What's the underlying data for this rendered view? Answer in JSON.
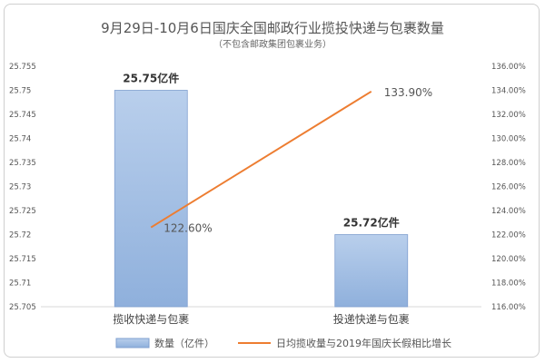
{
  "chart_data": {
    "type": "bar+line",
    "title": "9月29日-10月6日国庆全国邮政行业揽投快递与包裹数量",
    "subtitle": "（不包含邮政集团包裹业务）",
    "categories": [
      "揽收快递与包裹",
      "投递快递与包裹"
    ],
    "series": [
      {
        "name": "数量（亿件）",
        "type": "bar",
        "axis": "left",
        "color": "#a9c3e6",
        "values": [
          25.75,
          25.72
        ],
        "labels": [
          "25.75亿件",
          "25.72亿件"
        ]
      },
      {
        "name": "日均揽收量与2019年国庆长假相比增长",
        "type": "line",
        "axis": "right",
        "color": "#ed7d31",
        "values": [
          122.6,
          133.9
        ],
        "labels": [
          "122.60%",
          "133.90%"
        ]
      }
    ],
    "left_axis": {
      "ylim": [
        25.705,
        25.755
      ],
      "ticks": [
        "25.705",
        "25.71",
        "25.715",
        "25.72",
        "25.725",
        "25.73",
        "25.735",
        "25.74",
        "25.745",
        "25.75",
        "25.755"
      ]
    },
    "right_axis": {
      "ylim": [
        116,
        136
      ],
      "ticks": [
        "116.00%",
        "118.00%",
        "120.00%",
        "122.00%",
        "124.00%",
        "126.00%",
        "128.00%",
        "130.00%",
        "132.00%",
        "134.00%",
        "136.00%"
      ]
    },
    "legend_position": "bottom",
    "grid": false
  }
}
